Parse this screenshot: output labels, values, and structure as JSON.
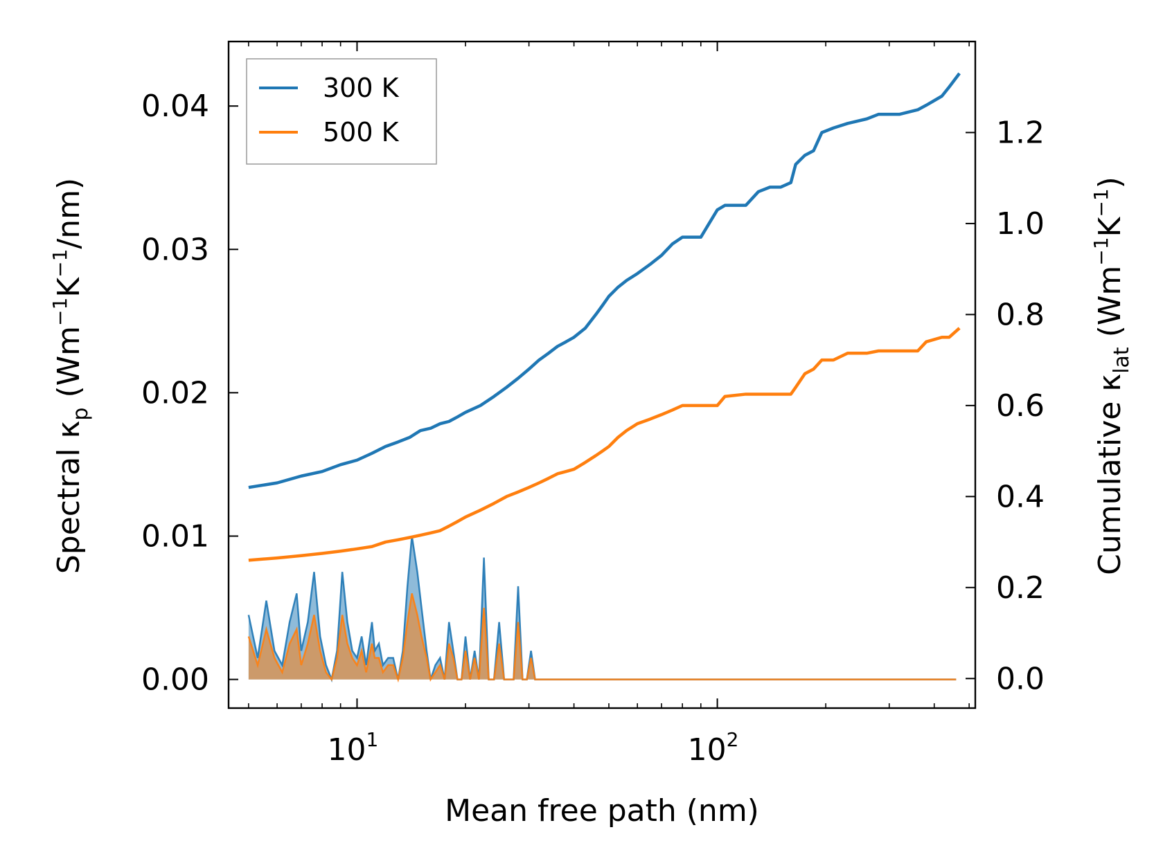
{
  "chart_data": {
    "type": "line",
    "title": "",
    "xlabel": "Mean free path (nm)",
    "ylabel_left": {
      "text": "Spectral ",
      "symbol": "κ",
      "subscript": "p",
      "units_open": " (Wm",
      "exp1": "−1",
      "mid": "K",
      "exp2": "−1",
      "units_close": "/nm)"
    },
    "ylabel_right": {
      "text": "Cumulative ",
      "symbol": "κ",
      "subscript": "lat",
      "units_open": " (Wm",
      "exp1": "−1",
      "mid": "K",
      "exp2": "−1",
      "units_close": ")"
    },
    "xscale": "log",
    "xlim": [
      4.4,
      520
    ],
    "ylim_left": [
      -0.002,
      0.0445
    ],
    "ylim_right": [
      -0.065,
      1.4
    ],
    "xticks": [
      {
        "value": 10,
        "base": "10",
        "exp": "1"
      },
      {
        "value": 100,
        "base": "10",
        "exp": "2"
      }
    ],
    "yticks_left": [
      {
        "value": 0.0,
        "label": "0.00"
      },
      {
        "value": 0.01,
        "label": "0.01"
      },
      {
        "value": 0.02,
        "label": "0.02"
      },
      {
        "value": 0.03,
        "label": "0.03"
      },
      {
        "value": 0.04,
        "label": "0.04"
      }
    ],
    "yticks_right": [
      {
        "value": 0.0,
        "label": "0.0"
      },
      {
        "value": 0.2,
        "label": "0.2"
      },
      {
        "value": 0.4,
        "label": "0.4"
      },
      {
        "value": 0.6,
        "label": "0.6"
      },
      {
        "value": 0.8,
        "label": "0.8"
      },
      {
        "value": 1.0,
        "label": "1.0"
      },
      {
        "value": 1.2,
        "label": "1.2"
      }
    ],
    "legend": {
      "position": "top-left",
      "entries": [
        "300 K",
        "500 K"
      ]
    },
    "cumulative_x": [
      5,
      6,
      7,
      8,
      9,
      10,
      11,
      12,
      13,
      14,
      15,
      16,
      17,
      18,
      19,
      20,
      22,
      24,
      26,
      28,
      30,
      32,
      34,
      36,
      38,
      40,
      43,
      46,
      48,
      50,
      53,
      56,
      60,
      65,
      70,
      75,
      80,
      90,
      100,
      105,
      120,
      130,
      140,
      150,
      160,
      165,
      175,
      185,
      195,
      210,
      230,
      260,
      280,
      320,
      360,
      380,
      420,
      440,
      470
    ],
    "spectral_x": [
      5,
      5.3,
      5.6,
      5.9,
      6.2,
      6.5,
      6.8,
      7.0,
      7.3,
      7.6,
      7.9,
      8.2,
      8.5,
      8.8,
      9.1,
      9.4,
      9.7,
      10.0,
      10.3,
      10.6,
      11.0,
      11.2,
      11.5,
      11.8,
      12.2,
      12.6,
      13.0,
      13.4,
      13.8,
      14.2,
      14.7,
      15.1,
      15.6,
      16.0,
      16.5,
      17.0,
      17.5,
      18.0,
      18.5,
      19.0,
      19.5,
      20.0,
      20.6,
      21.2,
      21.8,
      22.5,
      23.2,
      24.0,
      24.8,
      25.6,
      26.4,
      27.2,
      28.0,
      28.8,
      29.6,
      30.4,
      31.2,
      32.0,
      33.0,
      34.0,
      35.0,
      36.0,
      37.0,
      38.0,
      39.0,
      40.0,
      41.0,
      42.0,
      43.0,
      44.0,
      45.0,
      46.0,
      47.0,
      48.0,
      49.0,
      50.0,
      51.0,
      52.0,
      53.0,
      54.0,
      55.5,
      57.0,
      58.5,
      60.0,
      62.0,
      64.0,
      66.0,
      68.0,
      70.0,
      72.0,
      74.0,
      76.0,
      78.0,
      80.0,
      82.0,
      95.0,
      100.0,
      103.0,
      106.0,
      115.0,
      120.0,
      125.0,
      128.0,
      132.0,
      136.0,
      140.0,
      145.0,
      150.0,
      155.0,
      160.0,
      163.0,
      166.0,
      170.0,
      175.0,
      180.0,
      185.0,
      190.0,
      195.0,
      200.0,
      205.0,
      215.0,
      225.0,
      230.0,
      235.0,
      260.0,
      270.0,
      280.0,
      290.0,
      350.0,
      360.0,
      370.0,
      380.0,
      420.0,
      430.0,
      440.0,
      450.0,
      460.0
    ],
    "series": [
      {
        "name": "300 K",
        "color": "#1f77b4",
        "cumulative": [
          0.42,
          0.43,
          0.445,
          0.455,
          0.47,
          0.48,
          0.495,
          0.51,
          0.52,
          0.53,
          0.545,
          0.55,
          0.56,
          0.565,
          0.575,
          0.585,
          0.6,
          0.62,
          0.64,
          0.66,
          0.68,
          0.7,
          0.715,
          0.73,
          0.74,
          0.75,
          0.77,
          0.8,
          0.82,
          0.84,
          0.86,
          0.875,
          0.89,
          0.91,
          0.93,
          0.955,
          0.97,
          0.97,
          1.03,
          1.04,
          1.04,
          1.07,
          1.08,
          1.08,
          1.09,
          1.13,
          1.15,
          1.16,
          1.2,
          1.21,
          1.22,
          1.23,
          1.24,
          1.24,
          1.25,
          1.26,
          1.28,
          1.3,
          1.33
        ],
        "spectral": [
          0.0045,
          0.0015,
          0.0055,
          0.002,
          0.001,
          0.004,
          0.006,
          0.002,
          0.004,
          0.0075,
          0.003,
          0.001,
          0.0,
          0.002,
          0.0075,
          0.004,
          0.002,
          0.0015,
          0.003,
          0.001,
          0.004,
          0.002,
          0.0025,
          0.001,
          0.0015,
          0.0015,
          0.0,
          0.002,
          0.0065,
          0.01,
          0.0075,
          0.005,
          0.002,
          0.0,
          0.001,
          0.0015,
          0.0,
          0.004,
          0.002,
          0.0,
          0.0,
          0.003,
          0.0,
          0.002,
          0.0,
          0.0085,
          0.0,
          0.0,
          0.004,
          0.0,
          0.0,
          0.0,
          0.0065,
          0.0,
          0.0,
          0.002,
          0.0,
          0.0,
          0.0,
          0.0,
          0.0,
          0.0,
          0.0,
          0.0,
          0.0,
          0.0,
          0.0,
          0.0,
          0.0,
          0.0,
          0.0,
          0.0,
          0.0,
          0.0,
          0.0,
          0.0,
          0.0,
          0.0,
          0.0,
          0.0,
          0.0,
          0.0,
          0.0,
          0.0,
          0.0,
          0.0,
          0.0,
          0.0,
          0.0,
          0.0,
          0.0,
          0.0,
          0.0,
          0.0,
          0.0,
          0.0,
          0.0,
          0.0,
          0.0,
          0.0,
          0.0,
          0.0,
          0.0,
          0.0,
          0.0,
          0.0,
          0.0,
          0.0,
          0.0,
          0.0,
          0.0,
          0.0,
          0.0,
          0.0,
          0.0,
          0.0,
          0.0,
          0.0,
          0.0,
          0.0,
          0.0,
          0.0,
          0.0,
          0.0,
          0.0,
          0.0,
          0.0,
          0.0,
          0.0,
          0.0,
          0.0,
          0.0,
          0.0,
          0.0,
          0.0,
          0.0,
          0.0,
          0.0
        ]
      },
      {
        "name": "500 K",
        "color": "#ff7f0e",
        "cumulative": [
          0.26,
          0.265,
          0.27,
          0.275,
          0.28,
          0.285,
          0.29,
          0.3,
          0.305,
          0.31,
          0.315,
          0.32,
          0.325,
          0.335,
          0.345,
          0.355,
          0.37,
          0.385,
          0.4,
          0.41,
          0.42,
          0.43,
          0.44,
          0.45,
          0.455,
          0.46,
          0.475,
          0.49,
          0.5,
          0.51,
          0.53,
          0.545,
          0.56,
          0.57,
          0.58,
          0.59,
          0.6,
          0.6,
          0.6,
          0.62,
          0.625,
          0.625,
          0.625,
          0.625,
          0.625,
          0.64,
          0.67,
          0.68,
          0.7,
          0.7,
          0.715,
          0.715,
          0.72,
          0.72,
          0.72,
          0.74,
          0.75,
          0.75,
          0.77
        ],
        "spectral": [
          0.003,
          0.001,
          0.0035,
          0.0015,
          0.0005,
          0.0025,
          0.0035,
          0.001,
          0.0025,
          0.0045,
          0.002,
          0.0005,
          0.0,
          0.0015,
          0.0045,
          0.0025,
          0.0015,
          0.001,
          0.002,
          0.0005,
          0.0025,
          0.0015,
          0.0015,
          0.0005,
          0.001,
          0.001,
          0.0,
          0.0015,
          0.004,
          0.006,
          0.0045,
          0.003,
          0.0015,
          0.0,
          0.0005,
          0.001,
          0.0,
          0.0025,
          0.0015,
          0.0,
          0.0,
          0.002,
          0.0,
          0.0015,
          0.0,
          0.005,
          0.0,
          0.0,
          0.0025,
          0.0,
          0.0,
          0.0,
          0.004,
          0.0,
          0.0,
          0.0015,
          0.0,
          0.0,
          0.0,
          0.0,
          0.0,
          0.0,
          0.0,
          0.0,
          0.0,
          0.0,
          0.0,
          0.0,
          0.0,
          0.0,
          0.0,
          0.0,
          0.0,
          0.0,
          0.0,
          0.0,
          0.0,
          0.0,
          0.0,
          0.0,
          0.0,
          0.0,
          0.0,
          0.0,
          0.0,
          0.0,
          0.0,
          0.0,
          0.0,
          0.0,
          0.0,
          0.0,
          0.0,
          0.0,
          0.0,
          0.0,
          0.0,
          0.0,
          0.0,
          0.0,
          0.0,
          0.0,
          0.0,
          0.0,
          0.0,
          0.0,
          0.0,
          0.0,
          0.0,
          0.0,
          0.0,
          0.0,
          0.0,
          0.0,
          0.0,
          0.0,
          0.0,
          0.0,
          0.0,
          0.0,
          0.0,
          0.0,
          0.0,
          0.0,
          0.0,
          0.0,
          0.0,
          0.0,
          0.0,
          0.0,
          0.0,
          0.0,
          0.0,
          0.0,
          0.0,
          0.0,
          0.0,
          0.0,
          0.0,
          0.0,
          0.0
        ]
      }
    ]
  }
}
